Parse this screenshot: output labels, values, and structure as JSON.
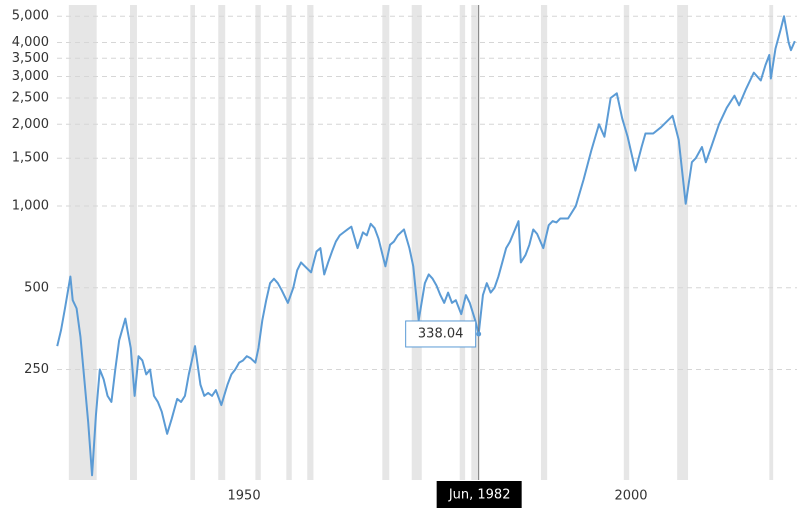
{
  "chart_data": {
    "type": "line",
    "log_y": true,
    "grid": true,
    "xlim": [
      1927.97,
      2023.58
    ],
    "xticks": [
      1950,
      2000
    ],
    "ylim": [
      98,
      5500
    ],
    "yticks": [
      250,
      500,
      {
        "value": 1000,
        "label": "1,000"
      },
      {
        "value": 1500,
        "label": "1,500"
      },
      {
        "value": 2000,
        "label": "2,000"
      },
      {
        "value": 2500,
        "label": "2,500"
      },
      {
        "value": 3000,
        "label": "3,000"
      },
      {
        "value": 3500,
        "label": "3,500"
      },
      {
        "value": 4000,
        "label": "4,000"
      },
      {
        "value": 5000,
        "label": "5,000"
      }
    ],
    "recession_color": "#e6e6e6",
    "recessions": [
      [
        1929.5,
        1933.1
      ],
      [
        1937.4,
        1938.3
      ],
      [
        1945.2,
        1945.8
      ],
      [
        1948.8,
        1949.7
      ],
      [
        1953.6,
        1954.3
      ],
      [
        1957.6,
        1958.3
      ],
      [
        1960.3,
        1961.1
      ],
      [
        1970.0,
        1970.9
      ],
      [
        1973.8,
        1975.1
      ],
      [
        1980.0,
        1980.7
      ],
      [
        1981.5,
        1982.4
      ],
      [
        1990.5,
        1991.3
      ],
      [
        2001.2,
        2001.9
      ],
      [
        2008.1,
        2009.5
      ],
      [
        2020.0,
        2020.5
      ]
    ],
    "annotation": {
      "x": 1982.45,
      "value": 338.04,
      "label": "338.04",
      "date": "Jun, 1982"
    },
    "series": [
      {
        "color": "#5b9bd5",
        "x": [
          1928.0,
          1928.5,
          1929.0,
          1929.7,
          1930.0,
          1930.5,
          1931.0,
          1931.5,
          1932.0,
          1932.5,
          1933.0,
          1933.5,
          1934.0,
          1934.5,
          1935.0,
          1935.5,
          1936.0,
          1936.8,
          1937.5,
          1938.0,
          1938.5,
          1939.0,
          1939.5,
          1940.0,
          1940.5,
          1941.0,
          1941.5,
          1942.2,
          1942.8,
          1943.5,
          1944.0,
          1944.5,
          1945.0,
          1945.8,
          1946.5,
          1947.0,
          1947.5,
          1948.0,
          1948.5,
          1949.2,
          1950.0,
          1950.5,
          1951.0,
          1951.5,
          1952.0,
          1952.5,
          1953.0,
          1953.6,
          1954.0,
          1954.5,
          1955.0,
          1955.5,
          1956.0,
          1956.5,
          1957.0,
          1957.8,
          1958.5,
          1959.0,
          1959.5,
          1960.0,
          1960.8,
          1961.5,
          1962.0,
          1962.5,
          1963.0,
          1963.5,
          1964.0,
          1964.5,
          1965.0,
          1965.5,
          1966.0,
          1966.8,
          1967.5,
          1968.0,
          1968.5,
          1969.0,
          1969.5,
          1970.4,
          1971.0,
          1971.5,
          1972.0,
          1972.8,
          1973.5,
          1974.0,
          1974.7,
          1975.5,
          1976.0,
          1976.5,
          1977.0,
          1977.5,
          1978.0,
          1978.5,
          1979.0,
          1979.5,
          1980.2,
          1980.8,
          1981.3,
          1982.0,
          1982.45,
          1983.0,
          1983.5,
          1984.0,
          1984.5,
          1985.0,
          1985.5,
          1986.0,
          1986.5,
          1987.6,
          1987.9,
          1988.5,
          1989.0,
          1989.5,
          1990.0,
          1990.8,
          1991.5,
          1992.0,
          1992.5,
          1993.0,
          1994.0,
          1995.0,
          1996.0,
          1997.0,
          1998.0,
          1998.7,
          1999.5,
          2000.3,
          2001.0,
          2001.7,
          2002.7,
          2003.5,
          2004.0,
          2005.0,
          2006.0,
          2007.5,
          2008.3,
          2009.2,
          2010.0,
          2010.5,
          2011.3,
          2011.8,
          2012.5,
          2013.5,
          2014.5,
          2015.5,
          2016.1,
          2017.0,
          2018.0,
          2018.9,
          2019.5,
          2020.0,
          2020.2,
          2020.8,
          2021.5,
          2021.9,
          2022.5,
          2022.8,
          2023.3
        ],
        "values": [
          305,
          350,
          420,
          550,
          450,
          420,
          330,
          230,
          160,
          102,
          170,
          250,
          230,
          200,
          190,
          250,
          320,
          385,
          300,
          200,
          280,
          270,
          240,
          250,
          200,
          190,
          175,
          145,
          165,
          195,
          190,
          200,
          240,
          305,
          220,
          200,
          205,
          200,
          210,
          185,
          220,
          240,
          250,
          265,
          270,
          280,
          275,
          265,
          300,
          380,
          450,
          520,
          540,
          520,
          490,
          440,
          500,
          580,
          620,
          600,
          570,
          680,
          700,
          560,
          620,
          680,
          740,
          780,
          800,
          820,
          840,
          700,
          800,
          780,
          860,
          830,
          760,
          600,
          720,
          740,
          780,
          820,
          700,
          600,
          380,
          520,
          560,
          540,
          510,
          470,
          440,
          480,
          440,
          450,
          400,
          470,
          440,
          380,
          338.04,
          470,
          520,
          480,
          500,
          550,
          620,
          700,
          740,
          880,
          620,
          660,
          720,
          820,
          790,
          700,
          850,
          880,
          870,
          900,
          900,
          1000,
          1250,
          1600,
          2000,
          1800,
          2500,
          2600,
          2100,
          1800,
          1350,
          1650,
          1850,
          1850,
          1950,
          2150,
          1750,
          1020,
          1450,
          1500,
          1650,
          1450,
          1650,
          2000,
          2300,
          2550,
          2350,
          2700,
          3100,
          2900,
          3300,
          3600,
          2950,
          3800,
          4500,
          5000,
          4000,
          3750,
          4050
        ]
      }
    ]
  }
}
